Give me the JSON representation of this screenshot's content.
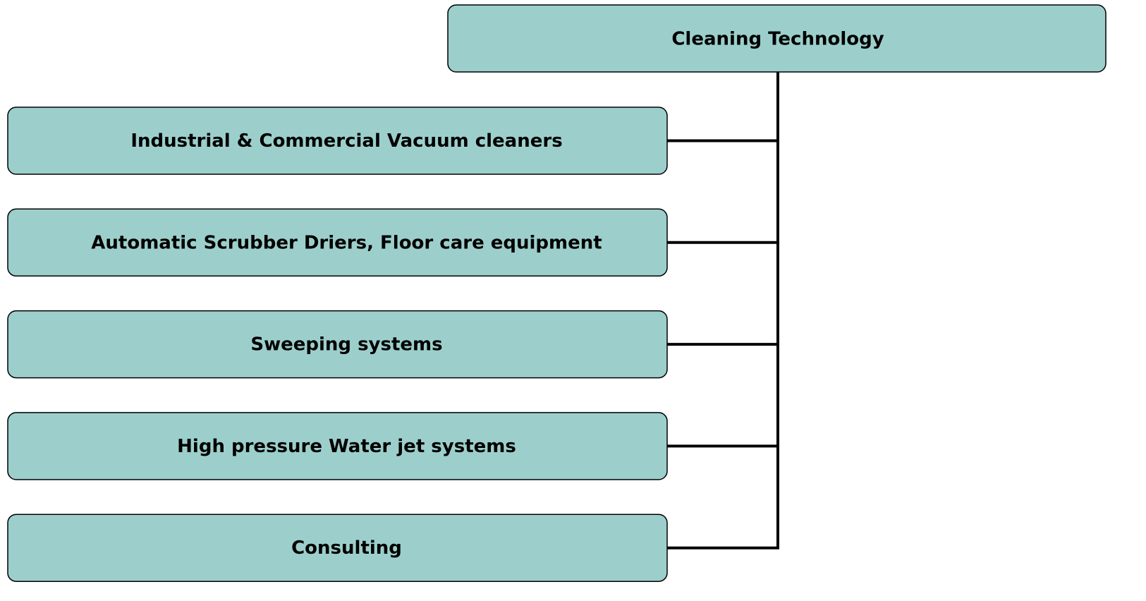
{
  "root": {
    "label": "Cleaning Technology"
  },
  "children": [
    {
      "label": "Industrial & Commercial Vacuum cleaners"
    },
    {
      "label": "Automatic Scrubber Driers, Floor care equipment"
    },
    {
      "label": "Sweeping systems"
    },
    {
      "label": "High pressure Water jet systems"
    },
    {
      "label": "Consulting"
    }
  ]
}
